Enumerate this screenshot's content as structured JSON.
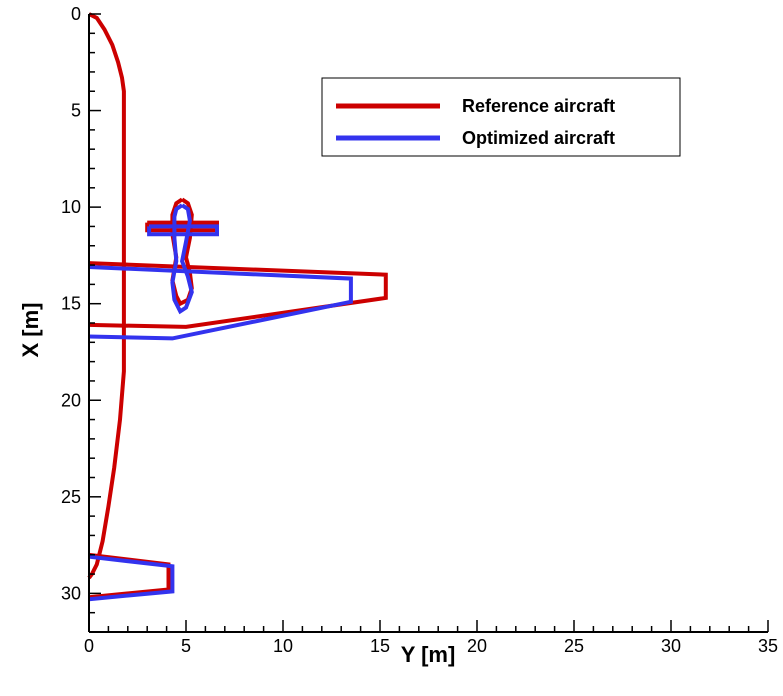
{
  "chart_data": {
    "type": "line",
    "title": "",
    "xlabel": "Y [m]",
    "ylabel": "X [m]",
    "xlim": [
      0,
      35
    ],
    "ylim": [
      0,
      32
    ],
    "y_inverted": true,
    "xticks": [
      0,
      5,
      10,
      15,
      20,
      25,
      30,
      35
    ],
    "yticks": [
      0,
      5,
      10,
      15,
      20,
      25,
      30
    ],
    "xtick_labels": [
      "0",
      "5",
      "10",
      "15",
      "20",
      "25",
      "30",
      "35"
    ],
    "ytick_labels": [
      "0",
      "5",
      "10",
      "15",
      "20",
      "25",
      "30"
    ],
    "grid": false,
    "legend_position": "top-right",
    "colors": {
      "reference": "#cc0000",
      "optimized": "#3333ee",
      "axis": "#000000"
    },
    "series": [
      {
        "name": "Reference aircraft",
        "color": "#cc0000",
        "paths": [
          {
            "part": "fuselage",
            "points": [
              [
                0,
                0
              ],
              [
                0.4,
                0.2
              ],
              [
                0.8,
                0.8
              ],
              [
                1.2,
                1.6
              ],
              [
                1.5,
                2.5
              ],
              [
                1.7,
                3.3
              ],
              [
                1.8,
                4.0
              ],
              [
                1.8,
                18.5
              ],
              [
                1.6,
                21.0
              ],
              [
                1.3,
                23.5
              ],
              [
                1.0,
                25.5
              ],
              [
                0.7,
                27.3
              ],
              [
                0.4,
                28.5
              ],
              [
                0.15,
                29.0
              ],
              [
                0,
                29.2
              ]
            ]
          },
          {
            "part": "wing",
            "points": [
              [
                0,
                12.9
              ],
              [
                15.3,
                13.5
              ],
              [
                15.3,
                14.7
              ],
              [
                5.0,
                16.2
              ],
              [
                0,
                16.1
              ]
            ]
          },
          {
            "part": "htail",
            "points": [
              [
                0,
                28.0
              ],
              [
                4.1,
                28.5
              ],
              [
                4.1,
                29.8
              ],
              [
                0,
                30.2
              ]
            ]
          },
          {
            "part": "canard",
            "points": [
              [
                3,
                10.8
              ],
              [
                6.6,
                10.8
              ],
              [
                6.6,
                11.2
              ],
              [
                3,
                11.2
              ],
              [
                3,
                10.8
              ]
            ]
          },
          {
            "part": "nacelle",
            "points": [
              [
                4.8,
                9.6
              ],
              [
                5.1,
                9.8
              ],
              [
                5.3,
                10.4
              ],
              [
                5.2,
                11.6
              ],
              [
                5.0,
                12.6
              ],
              [
                5.2,
                13.4
              ],
              [
                5.3,
                14.2
              ],
              [
                5.1,
                14.8
              ],
              [
                4.7,
                15.0
              ],
              [
                4.5,
                14.6
              ],
              [
                4.3,
                13.8
              ],
              [
                4.5,
                12.6
              ],
              [
                4.3,
                11.4
              ],
              [
                4.3,
                10.4
              ],
              [
                4.5,
                9.8
              ],
              [
                4.8,
                9.6
              ]
            ]
          }
        ]
      },
      {
        "name": "Optimized aircraft",
        "color": "#3333ee",
        "paths": [
          {
            "part": "wing",
            "points": [
              [
                0,
                13.1
              ],
              [
                13.5,
                13.7
              ],
              [
                13.5,
                14.9
              ],
              [
                4.3,
                16.8
              ],
              [
                0,
                16.7
              ]
            ]
          },
          {
            "part": "htail",
            "points": [
              [
                0,
                28.1
              ],
              [
                4.3,
                28.6
              ],
              [
                4.3,
                29.9
              ],
              [
                0,
                30.3
              ]
            ]
          },
          {
            "part": "canard",
            "points": [
              [
                3.1,
                11.0
              ],
              [
                6.6,
                11.0
              ],
              [
                6.6,
                11.4
              ],
              [
                3.1,
                11.4
              ],
              [
                3.1,
                11.0
              ]
            ]
          },
          {
            "part": "nacelle",
            "points": [
              [
                4.8,
                9.9
              ],
              [
                5.1,
                10.1
              ],
              [
                5.2,
                10.7
              ],
              [
                5.0,
                11.8
              ],
              [
                4.8,
                12.8
              ],
              [
                5.1,
                13.6
              ],
              [
                5.3,
                14.4
              ],
              [
                5.0,
                15.2
              ],
              [
                4.7,
                15.4
              ],
              [
                4.4,
                14.8
              ],
              [
                4.3,
                13.9
              ],
              [
                4.5,
                12.8
              ],
              [
                4.4,
                11.6
              ],
              [
                4.4,
                10.5
              ],
              [
                4.5,
                10.1
              ],
              [
                4.8,
                9.9
              ]
            ]
          }
        ]
      }
    ]
  }
}
